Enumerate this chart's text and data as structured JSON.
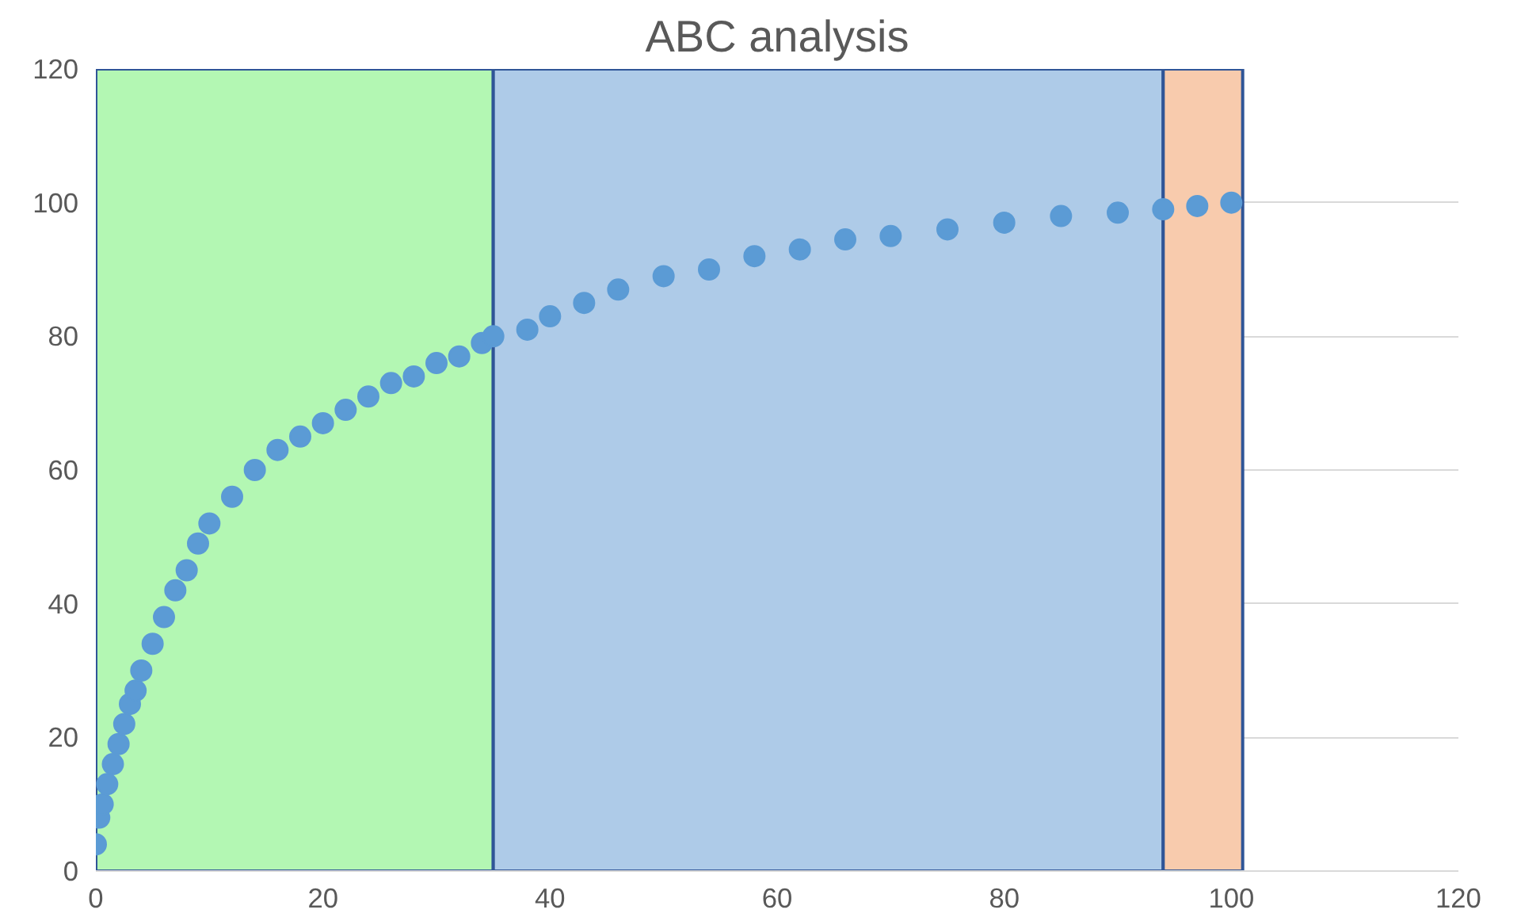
{
  "chart_data": {
    "type": "scatter",
    "title": "ABC analysis",
    "x": [
      0,
      0.3,
      0.6,
      1,
      1.5,
      2,
      2.5,
      3,
      3.5,
      4,
      5,
      6,
      7,
      8,
      9,
      10,
      12,
      14,
      16,
      18,
      20,
      22,
      24,
      26,
      28,
      30,
      32,
      34,
      35,
      38,
      40,
      43,
      46,
      50,
      54,
      58,
      62,
      66,
      70,
      75,
      80,
      85,
      90,
      94,
      97,
      100
    ],
    "series": [
      {
        "color": "#5b9bd5",
        "values": [
          4,
          8,
          10,
          13,
          16,
          19,
          22,
          25,
          27,
          30,
          34,
          38,
          42,
          45,
          49,
          52,
          56,
          60,
          63,
          65,
          67,
          69,
          71,
          73,
          74,
          76,
          77,
          79,
          80,
          81,
          83,
          85,
          87,
          89,
          90,
          92,
          93,
          94.5,
          95,
          96,
          97,
          98,
          98.5,
          99,
          99.5,
          100
        ]
      }
    ],
    "xlim": [
      0,
      120
    ],
    "ylim": [
      0,
      120
    ],
    "xticks": [
      0,
      20,
      40,
      60,
      80,
      100,
      120
    ],
    "yticks": [
      0,
      20,
      40,
      60,
      80,
      100,
      120
    ],
    "grid": true,
    "marker": "circle",
    "bands": [
      {
        "axis": "x",
        "from": 0,
        "to": 35,
        "color": "#b3f7b3"
      },
      {
        "axis": "x",
        "from": 35,
        "to": 94,
        "color": "#aecbe8"
      },
      {
        "axis": "x",
        "from": 94,
        "to": 101,
        "color": "#f8cbad"
      }
    ]
  }
}
